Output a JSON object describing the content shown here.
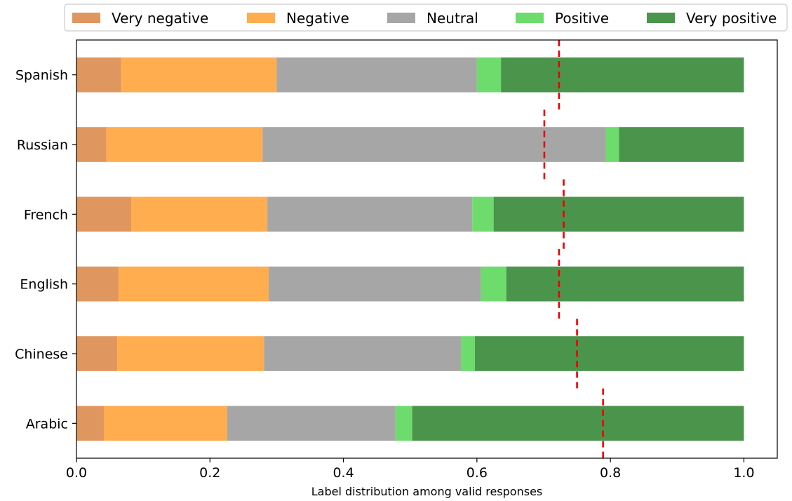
{
  "chart_data": {
    "type": "bar",
    "orientation": "horizontal",
    "stacked": true,
    "title": "",
    "xlabel": "Label distribution among valid responses",
    "ylabel": "",
    "xlim": [
      0,
      1.05
    ],
    "xticks": [
      0.0,
      0.2,
      0.4,
      0.6,
      0.8,
      1.0
    ],
    "xtick_labels": [
      "0.0",
      "0.2",
      "0.4",
      "0.6",
      "0.8",
      "1.0"
    ],
    "grid": false,
    "legend_position": "top",
    "categories": [
      "Spanish",
      "Russian",
      "French",
      "English",
      "Chinese",
      "Arabic"
    ],
    "series": [
      {
        "name": "Very negative",
        "color": "#e0975f",
        "values": [
          0.067,
          0.045,
          0.082,
          0.063,
          0.061,
          0.041
        ]
      },
      {
        "name": "Negative",
        "color": "#ffad4f",
        "values": [
          0.233,
          0.234,
          0.204,
          0.225,
          0.22,
          0.185
        ]
      },
      {
        "name": "Neutral",
        "color": "#a6a6a6",
        "values": [
          0.3,
          0.514,
          0.307,
          0.318,
          0.295,
          0.252
        ]
      },
      {
        "name": "Positive",
        "color": "#6ddc6d",
        "values": [
          0.036,
          0.02,
          0.032,
          0.038,
          0.021,
          0.025
        ]
      },
      {
        "name": "Very positive",
        "color": "#4b944b",
        "values": [
          0.364,
          0.187,
          0.375,
          0.356,
          0.403,
          0.497
        ]
      }
    ],
    "markers": {
      "style": "red dashed vertical line",
      "color": "#ee0000",
      "values": [
        0.723,
        0.701,
        0.73,
        0.723,
        0.75,
        0.789
      ]
    }
  }
}
